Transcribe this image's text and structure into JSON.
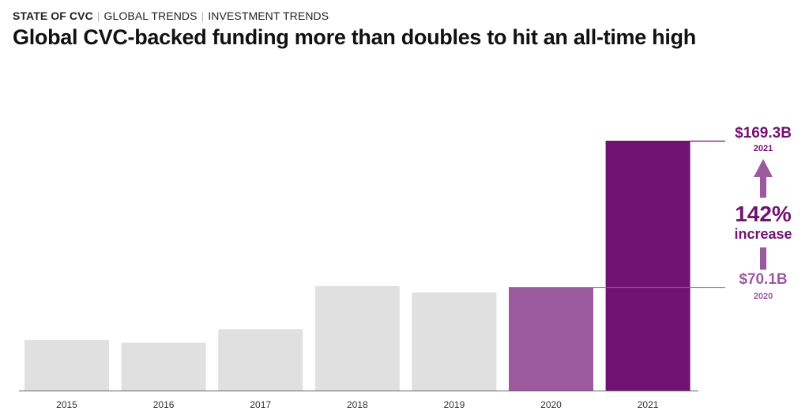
{
  "breadcrumb": {
    "section": "STATE OF CVC",
    "trail1": "GLOBAL TRENDS",
    "trail2": "INVESTMENT TRENDS"
  },
  "title": "Global CVC-backed funding more than doubles to hit an all-time high",
  "chart_data": {
    "type": "bar",
    "categories": [
      "2015",
      "2016",
      "2017",
      "2018",
      "2019",
      "2020",
      "2021"
    ],
    "values": [
      34.2,
      32.4,
      41.6,
      70.8,
      66.5,
      70.1,
      169.3
    ],
    "ylim": [
      0,
      169.3
    ],
    "colors": {
      "default": "#e0e0e0",
      "2020": "#9b5a9e",
      "2021": "#701270"
    },
    "annotations": {
      "high": {
        "value": "$169.3B",
        "year": "2021",
        "color": "#701270"
      },
      "low": {
        "value": "$70.1B",
        "year": "2020",
        "color": "#9b5a9e"
      },
      "change": {
        "percent": "142%",
        "label": "increase",
        "color": "#701270",
        "arrow_color": "#9b5a9e"
      }
    }
  }
}
